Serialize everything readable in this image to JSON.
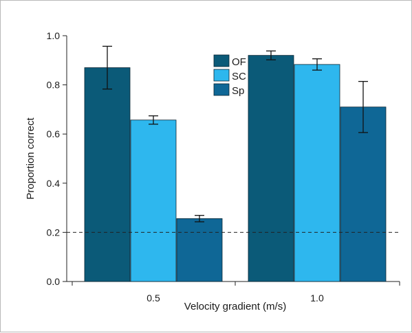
{
  "chart_data": {
    "type": "bar",
    "xlabel": "Velocity gradient (m/s)",
    "ylabel": "Proportion correct",
    "categories": [
      "0.5",
      "1.0"
    ],
    "ylim": [
      0.0,
      1.0
    ],
    "yticks": [
      "0.0",
      "0.2",
      "0.4",
      "0.6",
      "0.8",
      "1.0"
    ],
    "grid": false,
    "legend_position": "top-center",
    "reference_line": {
      "y": 0.2,
      "style": "dashed"
    },
    "series": [
      {
        "name": "OF",
        "color": "#0b5a78",
        "values": [
          0.87,
          0.92
        ],
        "error": [
          0.087,
          0.018
        ]
      },
      {
        "name": "SC",
        "color": "#2eb7ee",
        "values": [
          0.657,
          0.883
        ],
        "error": [
          0.017,
          0.023
        ]
      },
      {
        "name": "Sp",
        "color": "#0f6796",
        "values": [
          0.256,
          0.71
        ],
        "error": [
          0.013,
          0.104
        ]
      }
    ]
  }
}
